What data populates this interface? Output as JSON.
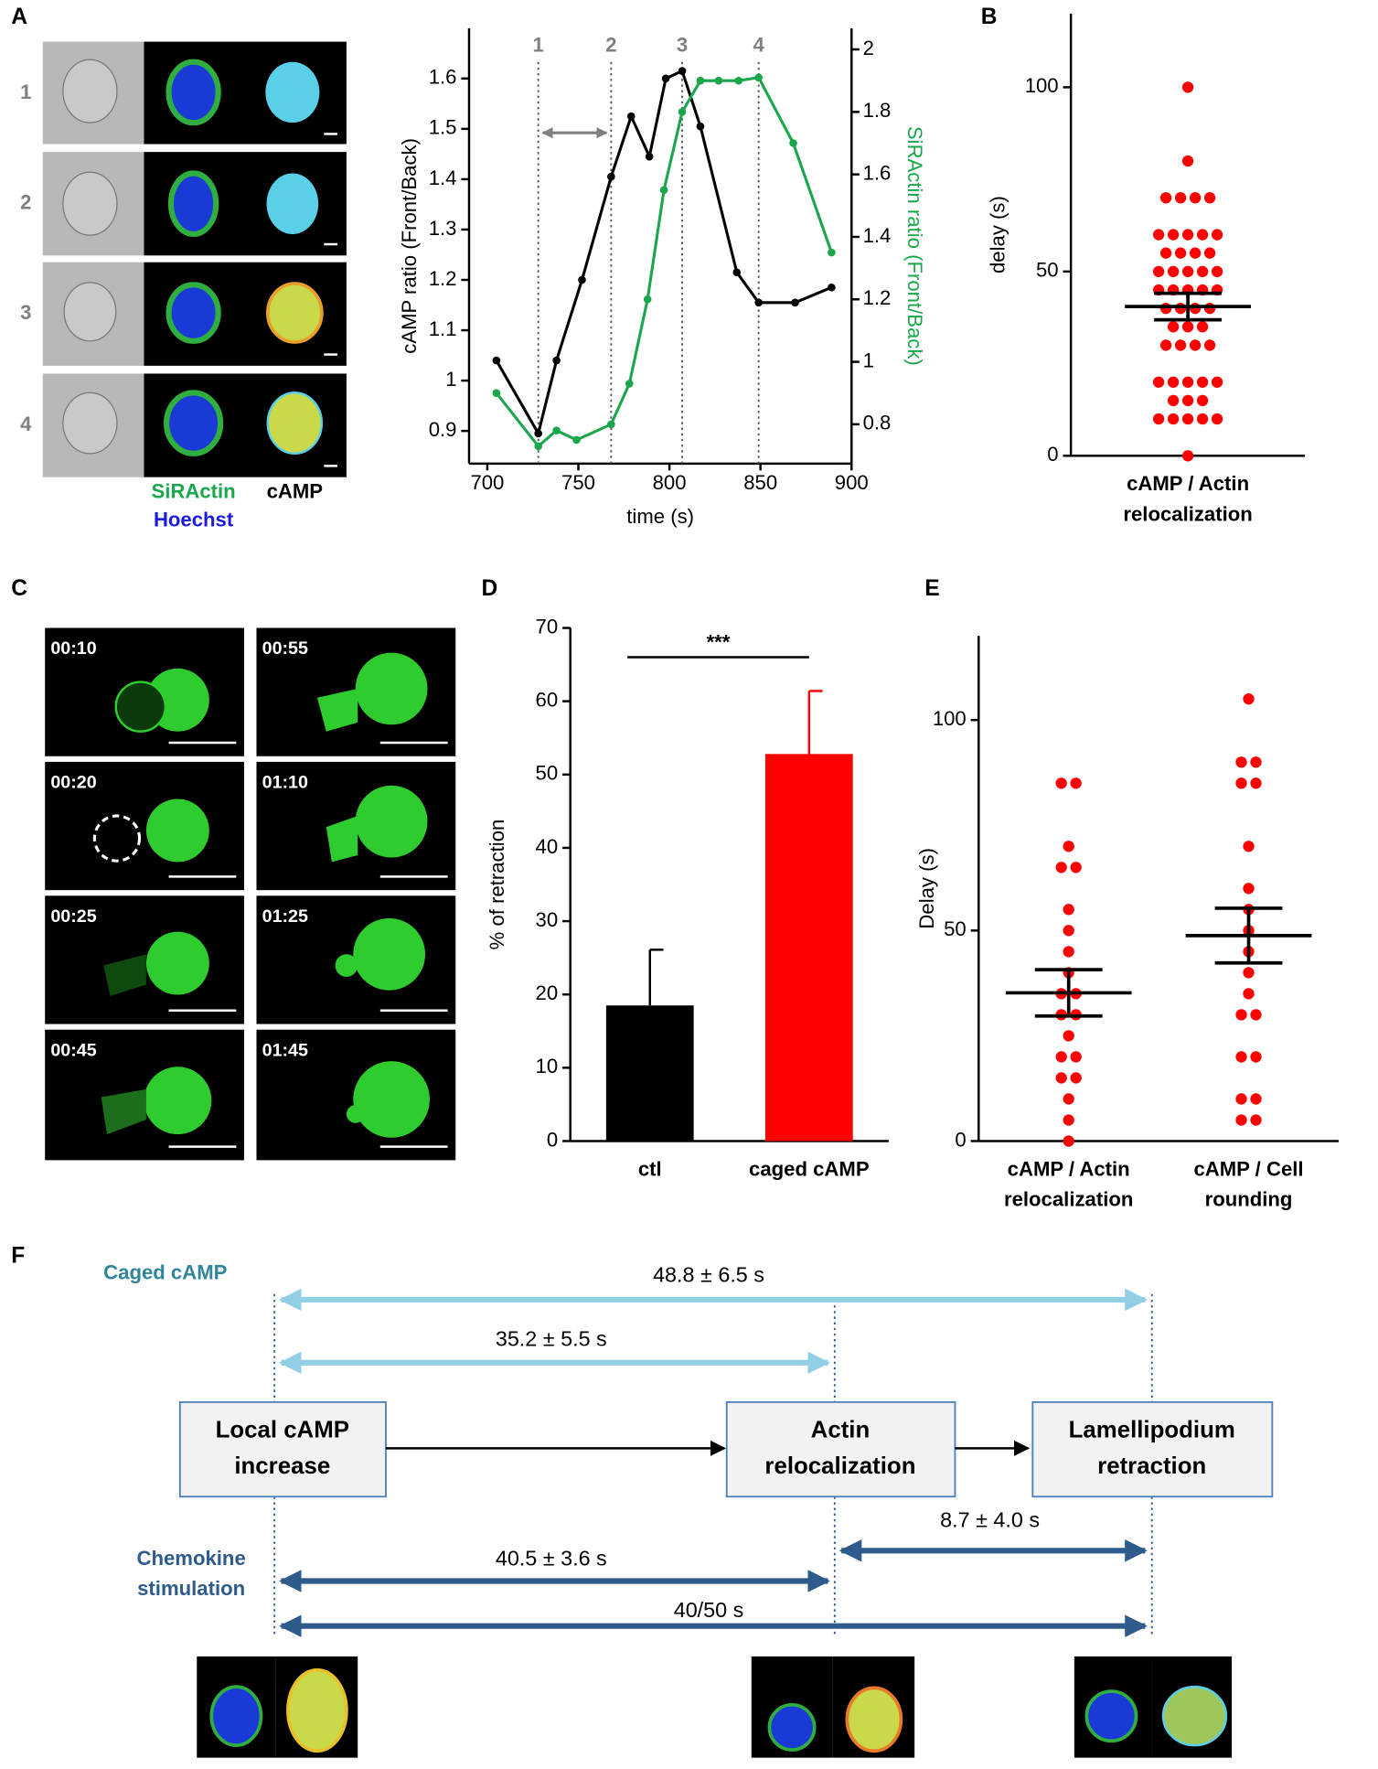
{
  "panel_labels": [
    "A",
    "B",
    "C",
    "D",
    "E",
    "F"
  ],
  "panel_a": {
    "row_labels": [
      "1",
      "2",
      "3",
      "4"
    ],
    "stain_labels": [
      "SiRActin",
      "Hoechst",
      "cAMP"
    ]
  },
  "panel_c": {
    "timestamps": [
      "00:10",
      "00:55",
      "00:20",
      "01:10",
      "00:25",
      "01:25",
      "00:45",
      "01:45"
    ]
  },
  "chart_data": [
    {
      "type": "line",
      "xlabel": "time (s)",
      "ylabel": "cAMP ratio (Front/Back)",
      "y2label": "SiRActin ratio (Front/Back)",
      "xlim": [
        690,
        900
      ],
      "xticks": [
        700,
        750,
        800,
        850,
        900
      ],
      "ylim": [
        0.835,
        1.7
      ],
      "yticks": [
        0.9,
        1,
        1.1,
        1.2,
        1.3,
        1.4,
        1.5,
        1.6
      ],
      "y2lim": [
        0.674,
        2.068
      ],
      "y2ticks": [
        0.8,
        1,
        1.2,
        1.4,
        1.6,
        1.8,
        2
      ],
      "markers": {
        "values": [
          728,
          768,
          807,
          849
        ],
        "labels": [
          "1",
          "2",
          "3",
          "4"
        ]
      },
      "series": [
        {
          "color": "#000000",
          "x": [
            705,
            728,
            738,
            752,
            768,
            779,
            789,
            798,
            807,
            817,
            837,
            849,
            869,
            889
          ],
          "values": [
            1.04,
            0.895,
            1.04,
            1.2,
            1.405,
            1.525,
            1.445,
            1.6,
            1.615,
            1.505,
            1.215,
            1.155,
            1.155,
            1.185
          ]
        },
        {
          "color": "#1aa64a",
          "axis": "y2",
          "x": [
            705,
            728,
            738,
            749,
            768,
            778,
            788,
            797,
            807,
            817,
            827,
            838,
            849,
            868,
            889
          ],
          "values": [
            0.9,
            0.73,
            0.78,
            0.75,
            0.8,
            0.93,
            1.2,
            1.55,
            1.8,
            1.9,
            1.9,
            1.9,
            1.91,
            1.7,
            1.35
          ]
        }
      ]
    },
    {
      "type": "strip",
      "ylabel": "delay (s)",
      "ylim": [
        0,
        120
      ],
      "yticks": [
        0,
        50,
        100
      ],
      "color": "#ff0000",
      "categories": [
        [
          "cAMP / Actin",
          "relocalization"
        ]
      ],
      "groups": [
        {
          "values": [
            100,
            80,
            70,
            70,
            70,
            70,
            60,
            60,
            60,
            60,
            60,
            55,
            55,
            55,
            55,
            50,
            50,
            50,
            50,
            50,
            45,
            45,
            45,
            45,
            45,
            40,
            40,
            40,
            40,
            35,
            35,
            35,
            30,
            30,
            30,
            30,
            20,
            20,
            20,
            20,
            20,
            15,
            15,
            15,
            10,
            10,
            10,
            10,
            10,
            0
          ],
          "mean": 40.5,
          "sem": 3.6
        }
      ]
    },
    {
      "type": "bar",
      "ylabel": "% of retraction",
      "ylim": [
        0,
        70
      ],
      "yticks": [
        0,
        10,
        20,
        30,
        40,
        50,
        60,
        70
      ],
      "annotation": "***",
      "categories": [
        "ctl",
        "caged cAMP"
      ],
      "colors": [
        "#000000",
        "#ff0000"
      ],
      "values": [
        18.5,
        52.8
      ],
      "errors": [
        7.6,
        8.6
      ]
    },
    {
      "type": "strip",
      "ylabel": "Delay (s)",
      "ylim": [
        0,
        120
      ],
      "yticks": [
        0,
        50,
        100
      ],
      "color": "#ff0000",
      "categories": [
        [
          "cAMP / Actin",
          "relocalization"
        ],
        [
          "cAMP / Cell",
          "rounding"
        ]
      ],
      "groups": [
        {
          "values": [
            85,
            85,
            70,
            65,
            65,
            55,
            50,
            45,
            40,
            35,
            35,
            30,
            30,
            25,
            20,
            20,
            15,
            15,
            10,
            5,
            0
          ],
          "mean": 35.2,
          "sem": 5.5
        },
        {
          "values": [
            105,
            90,
            90,
            85,
            85,
            70,
            60,
            55,
            50,
            45,
            40,
            35,
            30,
            30,
            20,
            20,
            10,
            10,
            5,
            5
          ],
          "mean": 48.8,
          "sem": 6.5
        }
      ]
    }
  ],
  "diagram": {
    "caged_label": "Caged cAMP",
    "chemokine_label": [
      "Chemokine",
      "stimulation"
    ],
    "boxes": [
      [
        "Local cAMP",
        "increase"
      ],
      [
        "Actin",
        "relocalization"
      ],
      [
        "Lamellipodium",
        "retraction"
      ]
    ],
    "intervals": [
      "48.8 ± 6.5 s",
      "35.2 ± 5.5 s",
      "8.7 ± 4.0 s",
      "40.5 ± 3.6 s",
      "40/50 s"
    ]
  }
}
